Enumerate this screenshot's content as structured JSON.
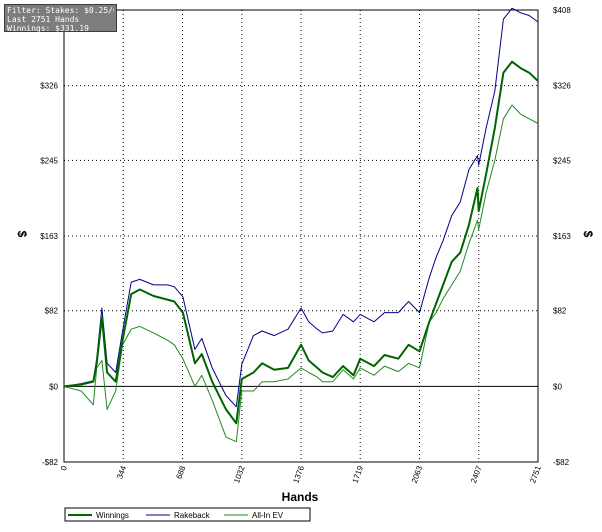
{
  "info": {
    "filter": "Filter: Stakes: $0.25/0.5 NL",
    "hands": "Last 2751 Hands",
    "winnings": "Winnings: $331.19"
  },
  "colors": {
    "winnings": "#006400",
    "rakeback": "#00008b",
    "allin_ev": "#228b22",
    "grid": "#000000"
  },
  "chart_data": {
    "type": "line",
    "xlabel": "Hands",
    "ylabel": "$",
    "xlim": [
      0,
      2751
    ],
    "ylim": [
      -82,
      408
    ],
    "xticks": [
      0,
      344,
      688,
      1032,
      1376,
      1719,
      2063,
      2407,
      2751
    ],
    "yticks": [
      -82,
      0,
      82,
      163,
      245,
      326,
      408
    ],
    "ytick_labels": [
      "-$82",
      "$0",
      "$82",
      "$163",
      "$245",
      "$326",
      "$408"
    ],
    "grid": true,
    "legend_position": "bottom",
    "series": [
      {
        "name": "Winnings",
        "x": [
          0,
          100,
          170,
          190,
          220,
          250,
          300,
          340,
          390,
          440,
          520,
          600,
          640,
          690,
          760,
          800,
          860,
          940,
          1000,
          1032,
          1100,
          1150,
          1220,
          1300,
          1376,
          1420,
          1470,
          1500,
          1560,
          1620,
          1680,
          1719,
          1800,
          1860,
          1940,
          2000,
          2063,
          2120,
          2160,
          2200,
          2250,
          2300,
          2350,
          2400,
          2407,
          2450,
          2500,
          2550,
          2600,
          2650,
          2700,
          2751
        ],
        "values": [
          0,
          2,
          5,
          25,
          75,
          15,
          5,
          50,
          100,
          105,
          98,
          94,
          92,
          80,
          25,
          35,
          5,
          -25,
          -40,
          8,
          15,
          25,
          18,
          20,
          45,
          28,
          20,
          15,
          10,
          22,
          12,
          30,
          22,
          34,
          30,
          45,
          38,
          70,
          90,
          110,
          135,
          145,
          175,
          215,
          190,
          230,
          280,
          340,
          352,
          345,
          340,
          331
        ]
      },
      {
        "name": "Rakeback",
        "x": [
          0,
          100,
          170,
          190,
          220,
          250,
          300,
          340,
          390,
          440,
          520,
          600,
          640,
          690,
          760,
          800,
          860,
          940,
          1000,
          1032,
          1100,
          1150,
          1220,
          1300,
          1376,
          1420,
          1470,
          1500,
          1560,
          1620,
          1680,
          1719,
          1800,
          1860,
          1940,
          2000,
          2063,
          2120,
          2160,
          2200,
          2250,
          2300,
          2350,
          2400,
          2407,
          2450,
          2500,
          2550,
          2600,
          2650,
          2700,
          2751
        ],
        "values": [
          0,
          3,
          6,
          30,
          85,
          25,
          15,
          60,
          113,
          116,
          110,
          110,
          108,
          97,
          40,
          52,
          20,
          -10,
          -22,
          24,
          55,
          60,
          55,
          62,
          85,
          70,
          62,
          58,
          60,
          78,
          70,
          78,
          70,
          80,
          80,
          92,
          80,
          118,
          140,
          158,
          185,
          200,
          235,
          250,
          240,
          280,
          320,
          398,
          410,
          405,
          402,
          395
        ]
      },
      {
        "name": "All-In EV",
        "x": [
          0,
          100,
          170,
          190,
          220,
          250,
          300,
          340,
          390,
          440,
          520,
          600,
          640,
          690,
          760,
          800,
          860,
          940,
          1000,
          1032,
          1100,
          1150,
          1220,
          1300,
          1376,
          1420,
          1470,
          1500,
          1560,
          1620,
          1680,
          1719,
          1800,
          1860,
          1940,
          2000,
          2063,
          2120,
          2160,
          2200,
          2250,
          2300,
          2350,
          2400,
          2407,
          2450,
          2500,
          2550,
          2600,
          2650,
          2700,
          2751
        ],
        "values": [
          0,
          -5,
          -20,
          20,
          28,
          -25,
          -5,
          45,
          62,
          65,
          58,
          50,
          45,
          30,
          0,
          12,
          -15,
          -55,
          -60,
          -5,
          -5,
          5,
          5,
          8,
          20,
          15,
          10,
          5,
          5,
          18,
          8,
          20,
          12,
          22,
          16,
          25,
          20,
          70,
          80,
          95,
          110,
          125,
          155,
          180,
          170,
          210,
          245,
          290,
          305,
          295,
          290,
          285
        ]
      }
    ]
  }
}
